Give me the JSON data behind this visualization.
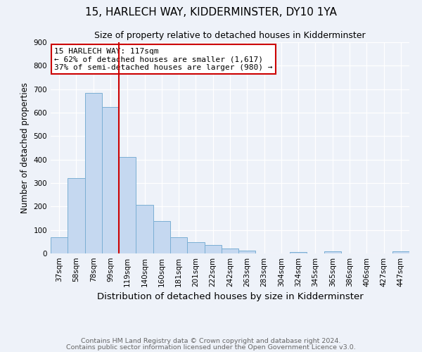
{
  "title": "15, HARLECH WAY, KIDDERMINSTER, DY10 1YA",
  "subtitle": "Size of property relative to detached houses in Kidderminster",
  "xlabel": "Distribution of detached houses by size in Kidderminster",
  "ylabel": "Number of detached properties",
  "bar_labels": [
    "37sqm",
    "58sqm",
    "78sqm",
    "99sqm",
    "119sqm",
    "140sqm",
    "160sqm",
    "181sqm",
    "201sqm",
    "222sqm",
    "242sqm",
    "263sqm",
    "283sqm",
    "304sqm",
    "324sqm",
    "345sqm",
    "365sqm",
    "386sqm",
    "406sqm",
    "427sqm",
    "447sqm"
  ],
  "bar_values": [
    70,
    320,
    685,
    625,
    410,
    207,
    138,
    68,
    47,
    35,
    20,
    12,
    0,
    0,
    7,
    0,
    8,
    0,
    0,
    0,
    8
  ],
  "bar_color": "#c5d8f0",
  "bar_edge_color": "#7bafd4",
  "vline_color": "#cc0000",
  "annotation_title": "15 HARLECH WAY: 117sqm",
  "annotation_line1": "← 62% of detached houses are smaller (1,617)",
  "annotation_line2": "37% of semi-detached houses are larger (980) →",
  "annotation_box_color": "#ffffff",
  "annotation_box_edge": "#cc0000",
  "ylim": [
    0,
    900
  ],
  "yticks": [
    0,
    100,
    200,
    300,
    400,
    500,
    600,
    700,
    800,
    900
  ],
  "footer1": "Contains HM Land Registry data © Crown copyright and database right 2024.",
  "footer2": "Contains public sector information licensed under the Open Government Licence v3.0.",
  "bg_color": "#eef2f9",
  "plot_bg_color": "#eef2f9",
  "title_fontsize": 11,
  "subtitle_fontsize": 9,
  "xlabel_fontsize": 9.5,
  "ylabel_fontsize": 8.5,
  "tick_fontsize": 7.5,
  "annotation_fontsize": 8,
  "footer_fontsize": 6.8
}
